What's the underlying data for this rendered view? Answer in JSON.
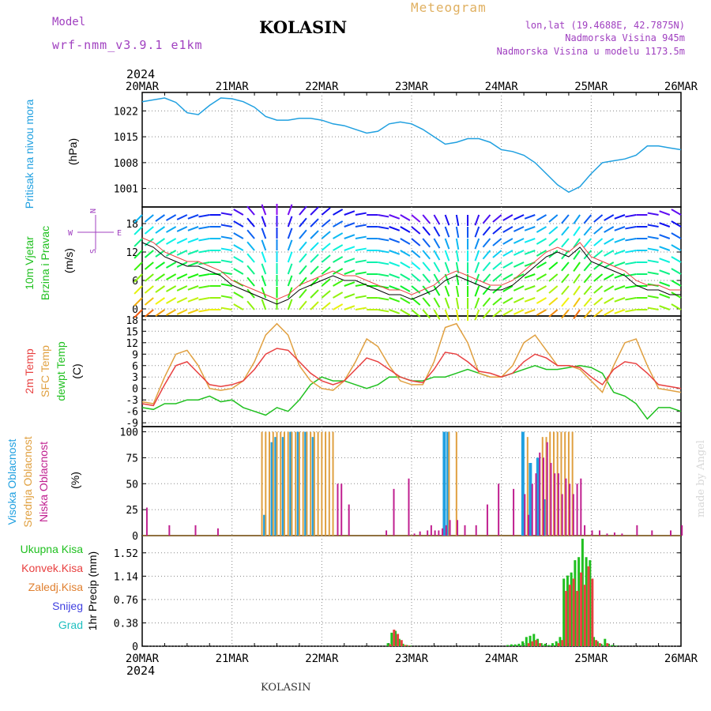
{
  "header": {
    "model_label": "Model",
    "model_name": "wrf-nmm_v3.9.1 e1km",
    "station": "KOLASIN",
    "meteogram": "Meteogram",
    "lonlat": "lon,lat (19.4688E, 42.7875N)",
    "altitude": "Nadmorska Visina 945m",
    "altitude_model": "Nadmorska Visina u modelu 1173.5m"
  },
  "footer": {
    "station": "KOLASIN",
    "watermark": "made by Angel"
  },
  "colors": {
    "pressure": "#20a0e0",
    "temp2m": "#e84040",
    "sfc": "#e0a040",
    "dew": "#20c020",
    "high_cloud": "#20a0e0",
    "mid_cloud": "#e0a040",
    "low_cloud": "#c02090",
    "total_precip": "#20c020",
    "conv_precip": "#e84040",
    "frozen": "#e08030",
    "snow": "#4040e0",
    "graupel": "#20c0c0"
  },
  "chart_data": [
    {
      "type": "line",
      "id": "pressure",
      "ylabel_lines": [
        "Pritisak na nivou mora",
        "(hPa)"
      ],
      "year": "2024",
      "date_ticks": [
        "20MAR",
        "21MAR",
        "22MAR",
        "23MAR",
        "24MAR",
        "25MAR",
        "26MAR"
      ],
      "ylim": [
        996,
        1027
      ],
      "yticks": [
        1001,
        1008,
        1015,
        1022
      ],
      "x": [
        0,
        3,
        6,
        9,
        12,
        15,
        18,
        21,
        24,
        27,
        30,
        33,
        36,
        39,
        42,
        45,
        48,
        51,
        54,
        57,
        60,
        63,
        66,
        69,
        72,
        75,
        78,
        81,
        84,
        87,
        90,
        93,
        96,
        99,
        102,
        105,
        108,
        111,
        114,
        117,
        120,
        123,
        126,
        129,
        132,
        135,
        138,
        141,
        144
      ],
      "values": [
        1024.5,
        1025,
        1025.5,
        1024.3,
        1021.5,
        1021,
        1023.5,
        1025.5,
        1025.3,
        1024.5,
        1023,
        1020.5,
        1019.5,
        1019.5,
        1020,
        1020,
        1019.5,
        1018.5,
        1018,
        1017,
        1016,
        1016.5,
        1018.5,
        1019,
        1018.5,
        1017,
        1015,
        1013,
        1013.5,
        1014.5,
        1014.5,
        1013.5,
        1011.5,
        1011,
        1010,
        1008,
        1005,
        1002,
        1000,
        1001.5,
        1005,
        1008,
        1008.5,
        1009,
        1010,
        1012.5,
        1012.5,
        1012,
        1011.5
      ]
    },
    {
      "type": "line",
      "id": "wind",
      "ylabel_lines": [
        "10m Vjetar",
        "Brzina i Pravac",
        "(m/s)"
      ],
      "compass": {
        "north": "N",
        "south": "S",
        "west": "W",
        "east": "E"
      },
      "ylim": [
        -1.5,
        21.5
      ],
      "yticks": [
        0,
        6,
        12,
        18
      ],
      "x": [
        0,
        3,
        6,
        9,
        12,
        15,
        18,
        21,
        24,
        27,
        30,
        33,
        36,
        39,
        42,
        45,
        48,
        51,
        54,
        57,
        60,
        63,
        66,
        69,
        72,
        75,
        78,
        81,
        84,
        87,
        90,
        93,
        96,
        99,
        102,
        105,
        108,
        111,
        114,
        117,
        120,
        123,
        126,
        129,
        132,
        135,
        138,
        141,
        144
      ],
      "series": [
        {
          "name": "speed",
          "values": [
            14,
            13,
            11,
            10,
            9,
            9,
            8,
            7,
            5,
            4,
            3,
            2,
            1,
            2,
            4,
            5,
            6,
            7,
            6,
            6,
            5,
            4,
            3,
            3,
            2,
            3,
            4,
            6,
            7,
            6,
            5,
            4,
            4,
            5,
            7,
            9,
            11,
            12,
            11,
            13,
            10,
            9,
            8,
            7,
            5,
            4,
            4,
            3,
            3
          ]
        },
        {
          "name": "gust",
          "values": [
            15,
            14,
            12,
            11,
            10,
            10,
            9,
            8,
            6,
            5,
            4,
            3,
            2,
            3,
            5,
            6,
            7,
            8,
            7,
            7,
            6,
            5,
            4,
            4,
            3,
            4,
            5,
            7,
            8,
            7,
            6,
            5,
            5,
            6,
            8,
            10,
            12,
            13,
            12,
            14,
            11,
            10,
            9,
            8,
            6,
            5,
            5,
            4,
            4
          ]
        }
      ],
      "barb_directions_deg": [
        225,
        230,
        235,
        240,
        245,
        250,
        260,
        270,
        280,
        300,
        320,
        340,
        0,
        20,
        40,
        45,
        50,
        60,
        70,
        80,
        90,
        100,
        110,
        120,
        130,
        140,
        150,
        160,
        170,
        180,
        200,
        220,
        230,
        240,
        245,
        250,
        240,
        230,
        220,
        215,
        220,
        230,
        240,
        250,
        260,
        270,
        280,
        290,
        300
      ]
    },
    {
      "type": "line",
      "id": "temperature",
      "ylabel_lines": [
        "2m Temp",
        "SFC Temp",
        "dewpt Temp",
        "(C)"
      ],
      "ylim": [
        -10,
        19
      ],
      "yticks": [
        -9,
        -6,
        -3,
        0,
        3,
        6,
        9,
        12,
        15,
        18
      ],
      "x": [
        0,
        3,
        6,
        9,
        12,
        15,
        18,
        21,
        24,
        27,
        30,
        33,
        36,
        39,
        42,
        45,
        48,
        51,
        54,
        57,
        60,
        63,
        66,
        69,
        72,
        75,
        78,
        81,
        84,
        87,
        90,
        93,
        96,
        99,
        102,
        105,
        108,
        111,
        114,
        117,
        120,
        123,
        126,
        129,
        132,
        135,
        138,
        141,
        144
      ],
      "series": [
        {
          "name": "2m Temp",
          "values": [
            -4,
            -4.5,
            1,
            6,
            7,
            4,
            1,
            0.5,
            1,
            2,
            5,
            9,
            10.5,
            10,
            7,
            4,
            2,
            1,
            2,
            5,
            8,
            7,
            5,
            3,
            2,
            1.5,
            5,
            9.5,
            9,
            7,
            4.5,
            4,
            3,
            4,
            7,
            9,
            8,
            6,
            6,
            5.5,
            3,
            1,
            5,
            7,
            6.5,
            4,
            1,
            0.5,
            0
          ]
        },
        {
          "name": "SFC Temp",
          "values": [
            -3.5,
            -4,
            3,
            9,
            10,
            6,
            0,
            -0.5,
            0,
            2,
            7,
            14,
            17,
            14,
            6,
            2,
            0,
            -0.5,
            2,
            7,
            13,
            11,
            6,
            2,
            1,
            1,
            7,
            16,
            17,
            12,
            4,
            3,
            3,
            6,
            12,
            14,
            10,
            6,
            6,
            5,
            2,
            -1,
            6,
            12,
            13,
            6,
            0,
            -0.5,
            -1
          ]
        },
        {
          "name": "dewpt Temp",
          "values": [
            -5,
            -5.5,
            -4,
            -4,
            -3,
            -3,
            -2,
            -3.5,
            -3,
            -5,
            -6,
            -7,
            -5,
            -6,
            -3,
            1,
            3,
            2,
            2,
            1,
            0,
            1,
            3,
            3,
            2,
            2,
            3,
            3,
            4,
            5,
            4,
            3,
            3,
            4,
            5,
            6,
            5,
            5,
            5.5,
            6,
            5.5,
            4,
            -1,
            -2,
            -4,
            -8,
            -5,
            -5,
            -6
          ]
        }
      ]
    },
    {
      "type": "bar",
      "id": "clouds",
      "ylabel_lines": [
        "Visoka Oblacnost",
        "Srednja Oblacnost",
        "Niska Oblacnost",
        "(%)"
      ],
      "ylim": [
        0,
        105
      ],
      "yticks": [
        0,
        25,
        50,
        75,
        100
      ],
      "x": [
        2,
        6,
        14,
        22,
        28,
        40,
        64,
        66,
        68,
        70,
        72,
        74,
        76,
        78,
        80,
        82,
        84,
        86,
        88,
        90,
        92,
        94,
        96,
        98,
        100,
        102,
        104,
        106,
        110,
        114,
        130,
        134,
        142,
        145,
        148,
        152,
        154,
        156,
        158,
        160,
        162,
        164,
        168,
        172,
        178,
        184,
        190,
        198,
        204,
        206,
        208,
        210,
        212,
        214,
        216,
        218,
        220,
        222,
        224,
        226,
        228,
        230,
        232,
        234,
        236,
        240,
        244,
        248,
        252,
        256,
        264,
        272,
        282,
        288
      ],
      "series": [
        {
          "name": "Visoka Oblacnost",
          "values": [
            0,
            0,
            0,
            0,
            0,
            0,
            0,
            20,
            0,
            90,
            95,
            0,
            95,
            0,
            100,
            0,
            100,
            0,
            100,
            0,
            95,
            0,
            0,
            0,
            0,
            0,
            0,
            0,
            0,
            0,
            0,
            0,
            0,
            0,
            0,
            0,
            0,
            0,
            0,
            0,
            100,
            100,
            0,
            0,
            0,
            0,
            0,
            0,
            100,
            0,
            70,
            0,
            75,
            0,
            35,
            0,
            0,
            0,
            0,
            0,
            0,
            0,
            0,
            0,
            0,
            0,
            0,
            0,
            0,
            0,
            0,
            0,
            0,
            0
          ]
        },
        {
          "name": "Srednja Oblacnost",
          "values": [
            0,
            0,
            0,
            0,
            0,
            0,
            100,
            100,
            100,
            100,
            100,
            100,
            100,
            100,
            100,
            100,
            100,
            100,
            100,
            100,
            100,
            100,
            100,
            100,
            100,
            100,
            0,
            0,
            0,
            0,
            0,
            0,
            0,
            0,
            0,
            0,
            0,
            0,
            0,
            0,
            0,
            100,
            100,
            0,
            0,
            0,
            0,
            0,
            0,
            95,
            0,
            0,
            0,
            95,
            95,
            100,
            100,
            100,
            100,
            100,
            100,
            100,
            0,
            0,
            0,
            0,
            0,
            0,
            0,
            0,
            0,
            0,
            0,
            0
          ]
        },
        {
          "name": "Niska Oblacnost",
          "values": [
            27,
            0,
            10,
            0,
            10,
            7,
            0,
            0,
            0,
            0,
            0,
            0,
            0,
            0,
            0,
            0,
            0,
            0,
            0,
            0,
            0,
            0,
            0,
            0,
            0,
            0,
            50,
            50,
            30,
            0,
            5,
            45,
            55,
            2,
            4,
            5,
            10,
            5,
            5,
            7,
            10,
            15,
            15,
            10,
            10,
            30,
            50,
            45,
            40,
            20,
            50,
            60,
            80,
            75,
            90,
            70,
            60,
            60,
            40,
            55,
            50,
            40,
            50,
            55,
            10,
            5,
            5,
            2,
            3,
            2,
            10,
            5,
            5,
            10
          ]
        }
      ]
    },
    {
      "type": "bar",
      "id": "precipitation",
      "ylabel_lines": [
        "1hr Precip (mm)"
      ],
      "legend": [
        "Ukupna Kisa",
        "Konvek.Kisa",
        "Zaledj.Kisa",
        "Snijeg",
        "Grad"
      ],
      "ylim": [
        0,
        1.8
      ],
      "yticks": [
        0,
        0.38,
        0.76,
        1.14,
        1.52
      ],
      "x": [
        66,
        67,
        68,
        69,
        70,
        71,
        72,
        98,
        99,
        100,
        101,
        102,
        103,
        104,
        105,
        106,
        107,
        108,
        109,
        110,
        111,
        112,
        113,
        114,
        115,
        116,
        117,
        118,
        119,
        120,
        121,
        122,
        123,
        124,
        125,
        126,
        127,
        128,
        129,
        130,
        131
      ],
      "series": [
        {
          "name": "Ukupna Kisa",
          "values": [
            0.05,
            0.22,
            0.25,
            0.12,
            0.04,
            0.02,
            0.01,
            0.02,
            0.03,
            0.03,
            0.04,
            0.08,
            0.15,
            0.17,
            0.2,
            0.12,
            0.05,
            0.04,
            0.02,
            0.05,
            0.08,
            0.15,
            1.1,
            1.15,
            1.2,
            1.4,
            1.45,
            1.75,
            1.45,
            1.4,
            0.15,
            0.08,
            0.04,
            0.12,
            0.04,
            0.02,
            0.01,
            0.0,
            0.0,
            0.0,
            0.0
          ]
        },
        {
          "name": "Konvek.Kisa",
          "values": [
            0.03,
            0.27,
            0.2,
            0.1,
            0.02,
            0.01,
            0,
            0,
            0,
            0,
            0,
            0,
            0.05,
            0.08,
            0.1,
            0.05,
            0,
            0,
            0,
            0,
            0.05,
            0.1,
            0.9,
            1.0,
            1.1,
            0.9,
            1.2,
            1.0,
            1.3,
            1.1,
            0.1,
            0.05,
            0,
            0.05,
            0,
            0,
            0,
            0,
            0,
            0,
            0
          ]
        }
      ]
    }
  ]
}
